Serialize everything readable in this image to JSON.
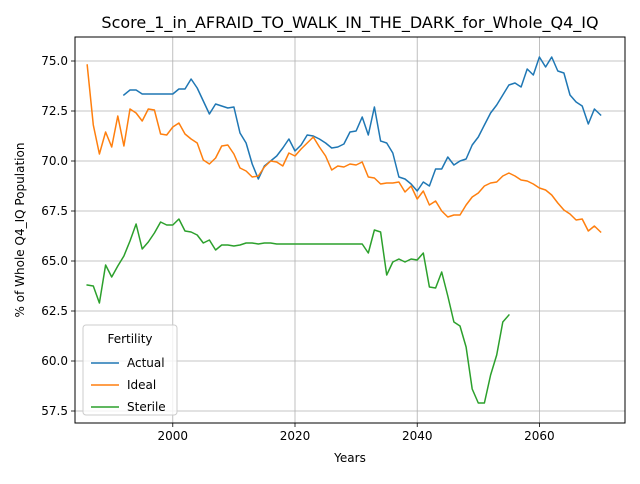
{
  "chart_data": {
    "type": "line",
    "title": "Score_1_in_AFRAID_TO_WALK_IN_THE_DARK_for_Whole_Q4_IQ",
    "xlabel": "Years",
    "ylabel": "% of Whole Q4_IQ Population",
    "xlim": [
      1984,
      2074
    ],
    "ylim": [
      56.9,
      76.2
    ],
    "x_ticks": [
      2000,
      2020,
      2040,
      2060
    ],
    "y_ticks": [
      57.5,
      60.0,
      62.5,
      65.0,
      67.5,
      70.0,
      72.5,
      75.0
    ],
    "x_tick_labels": [
      "2000",
      "2020",
      "2040",
      "2060"
    ],
    "y_tick_labels": [
      "57.5",
      "60.0",
      "62.5",
      "65.0",
      "67.5",
      "70.0",
      "72.5",
      "75.0"
    ],
    "grid": true,
    "legend": {
      "title": "Fertility",
      "placement": "lower-left"
    },
    "series": [
      {
        "name": "Actual",
        "color": "#1f77b4",
        "x": [
          1992,
          1993,
          1994,
          1995,
          1996,
          1997,
          1998,
          1999,
          2000,
          2001,
          2002,
          2003,
          2004,
          2005,
          2006,
          2007,
          2008,
          2009,
          2010,
          2011,
          2012,
          2013,
          2014,
          2015,
          2016,
          2017,
          2018,
          2019,
          2020,
          2021,
          2022,
          2023,
          2024,
          2025,
          2026,
          2027,
          2028,
          2029,
          2030,
          2031,
          2032,
          2033,
          2034,
          2035,
          2036,
          2037,
          2038,
          2039,
          2040,
          2041,
          2042,
          2043,
          2044,
          2045,
          2046,
          2047,
          2048,
          2049,
          2050,
          2051,
          2052,
          2053,
          2054,
          2055,
          2056,
          2057,
          2058,
          2059,
          2060,
          2061,
          2062,
          2063,
          2064,
          2065,
          2066,
          2067,
          2068,
          2069,
          2070
        ],
        "values": [
          73.3,
          73.55,
          73.55,
          73.35,
          73.35,
          73.35,
          73.35,
          73.35,
          73.35,
          73.6,
          73.6,
          74.1,
          73.65,
          73.0,
          72.35,
          72.85,
          72.75,
          72.65,
          72.7,
          71.4,
          70.9,
          69.85,
          69.1,
          69.75,
          70.0,
          70.25,
          70.65,
          71.1,
          70.5,
          70.8,
          71.3,
          71.25,
          71.1,
          70.9,
          70.65,
          70.7,
          70.85,
          71.45,
          71.5,
          72.2,
          71.3,
          72.7,
          71.0,
          70.9,
          70.4,
          69.2,
          69.1,
          68.85,
          68.5,
          68.95,
          68.75,
          69.6,
          69.6,
          70.2,
          69.8,
          70.0,
          70.1,
          70.8,
          71.2,
          71.8,
          72.4,
          72.8,
          73.3,
          73.8,
          73.9,
          73.7,
          74.6,
          74.3,
          75.2,
          74.7,
          75.2,
          74.5,
          74.4,
          73.3,
          72.95,
          72.75,
          71.85,
          72.6,
          72.3
        ]
      },
      {
        "name": "Ideal",
        "color": "#ff7f0e",
        "x": [
          1986,
          1987,
          1988,
          1989,
          1990,
          1991,
          1992,
          1993,
          1994,
          1995,
          1996,
          1997,
          1998,
          1999,
          2000,
          2001,
          2002,
          2003,
          2004,
          2005,
          2006,
          2007,
          2008,
          2009,
          2010,
          2011,
          2012,
          2013,
          2014,
          2015,
          2016,
          2017,
          2018,
          2019,
          2020,
          2021,
          2022,
          2023,
          2024,
          2025,
          2026,
          2027,
          2028,
          2029,
          2030,
          2031,
          2032,
          2033,
          2034,
          2035,
          2036,
          2037,
          2038,
          2039,
          2040,
          2041,
          2042,
          2043,
          2044,
          2045,
          2046,
          2047,
          2048,
          2049,
          2050,
          2051,
          2052,
          2053,
          2054,
          2055,
          2056,
          2057,
          2058,
          2059,
          2060,
          2061,
          2062,
          2063,
          2064,
          2065,
          2066,
          2067,
          2068,
          2069,
          2070
        ],
        "values": [
          74.8,
          71.8,
          70.35,
          71.45,
          70.7,
          72.25,
          70.75,
          72.6,
          72.4,
          72.0,
          72.6,
          72.55,
          71.35,
          71.3,
          71.7,
          71.9,
          71.35,
          71.1,
          70.9,
          70.05,
          69.85,
          70.15,
          70.75,
          70.8,
          70.35,
          69.65,
          69.5,
          69.2,
          69.25,
          69.7,
          70.0,
          69.95,
          69.75,
          70.4,
          70.25,
          70.6,
          70.9,
          71.2,
          70.7,
          70.25,
          69.55,
          69.75,
          69.7,
          69.85,
          69.8,
          69.95,
          69.2,
          69.15,
          68.85,
          68.9,
          68.9,
          68.95,
          68.45,
          68.75,
          68.1,
          68.5,
          67.8,
          68.0,
          67.5,
          67.2,
          67.3,
          67.3,
          67.8,
          68.2,
          68.4,
          68.75,
          68.9,
          68.95,
          69.25,
          69.4,
          69.25,
          69.05,
          69.0,
          68.85,
          68.65,
          68.55,
          68.3,
          67.9,
          67.55,
          67.35,
          67.05,
          67.1,
          66.5,
          66.75,
          66.45
        ]
      },
      {
        "name": "Sterile",
        "color": "#2ca02c",
        "x": [
          1986,
          1987,
          1988,
          1989,
          1990,
          1991,
          1992,
          1993,
          1994,
          1995,
          1996,
          1997,
          1998,
          1999,
          2000,
          2001,
          2002,
          2003,
          2004,
          2005,
          2006,
          2007,
          2008,
          2009,
          2010,
          2011,
          2012,
          2013,
          2014,
          2015,
          2016,
          2017,
          2018,
          2019,
          2020,
          2021,
          2022,
          2023,
          2024,
          2025,
          2026,
          2027,
          2028,
          2029,
          2030,
          2031,
          2032,
          2033,
          2034,
          2035,
          2036,
          2037,
          2038,
          2039,
          2040,
          2041,
          2042,
          2043,
          2044,
          2045,
          2046,
          2047,
          2048,
          2049,
          2050,
          2051,
          2052,
          2053,
          2054,
          2055
        ],
        "values": [
          63.8,
          63.75,
          62.9,
          64.8,
          64.2,
          64.75,
          65.25,
          66.0,
          66.85,
          65.6,
          65.95,
          66.4,
          66.95,
          66.8,
          66.8,
          67.1,
          66.5,
          66.45,
          66.3,
          65.9,
          66.05,
          65.55,
          65.8,
          65.8,
          65.75,
          65.8,
          65.9,
          65.9,
          65.85,
          65.9,
          65.9,
          65.85,
          65.85,
          65.85,
          65.85,
          65.85,
          65.85,
          65.85,
          65.85,
          65.85,
          65.85,
          65.85,
          65.85,
          65.85,
          65.85,
          65.85,
          65.4,
          66.55,
          66.45,
          64.3,
          64.95,
          65.1,
          64.95,
          65.1,
          65.05,
          65.4,
          63.7,
          63.65,
          64.45,
          63.25,
          61.95,
          61.75,
          60.7,
          58.6,
          57.9,
          57.9,
          59.3,
          60.3,
          61.95,
          62.3
        ]
      }
    ]
  }
}
